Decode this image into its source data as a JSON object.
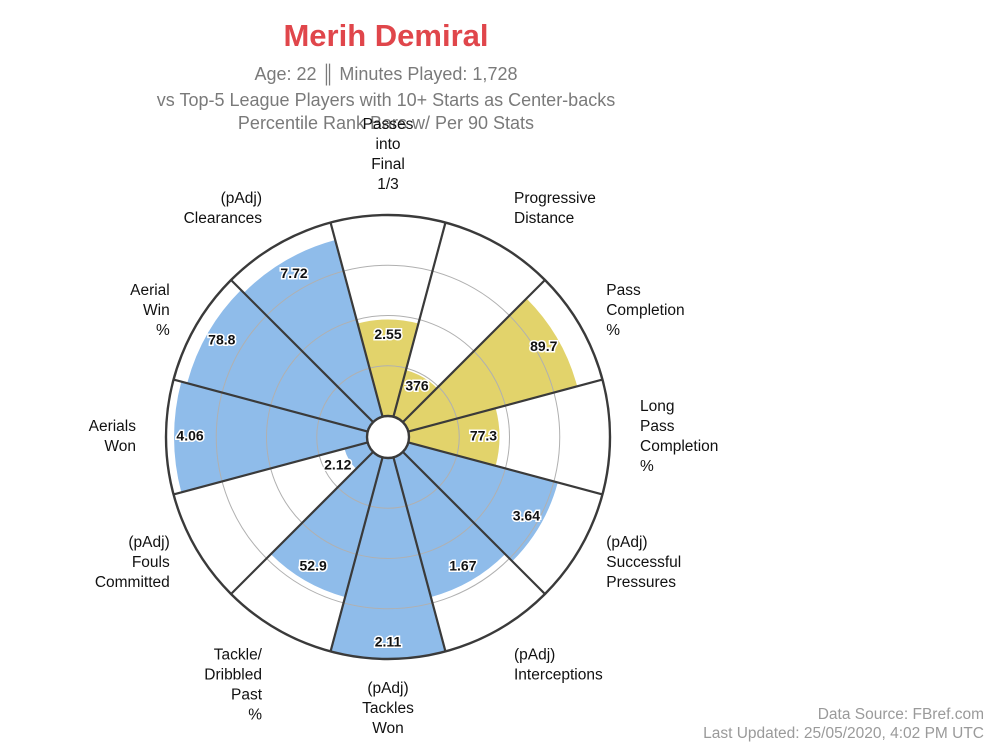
{
  "chart_data": {
    "type": "polar-bar",
    "title": "Merih Demiral",
    "subtitle_age_label": "Age: 22",
    "subtitle_separator": "║",
    "subtitle_minutes_label": "Minutes Played: 1,728",
    "subtitle_line2": "vs Top-5 League Players with 10+ Starts as Center-backs",
    "subtitle_line3": "Percentile Rank Bars w/ Per 90 Stats",
    "percentile_max": 100,
    "colors": {
      "attack": "#e2d36b",
      "defense": "#8fbcea",
      "outline": "#3a3a3a",
      "ring": "#b0b0b0"
    },
    "stats": [
      {
        "label": [
          "Passes",
          "into",
          "Final",
          "1/3"
        ],
        "value": "2.55",
        "percentile": 48,
        "group": "attack"
      },
      {
        "label": [
          "Progressive",
          "Distance"
        ],
        "value": "376",
        "percentile": 24,
        "group": "attack"
      },
      {
        "label": [
          "Pass",
          "Completion",
          "%"
        ],
        "value": "89.7",
        "percentile": 87,
        "group": "attack"
      },
      {
        "label": [
          "Long",
          "Pass",
          "Completion",
          "%"
        ],
        "value": "77.3",
        "percentile": 45,
        "group": "attack"
      },
      {
        "label": [
          "(pAdj)",
          "Successful",
          "Pressures"
        ],
        "value": "3.64",
        "percentile": 77,
        "group": "defense"
      },
      {
        "label": [
          "(pAdj)",
          "Interceptions"
        ],
        "value": "1.67",
        "percentile": 72,
        "group": "defense"
      },
      {
        "label": [
          "(pAdj)",
          "Tackles",
          "Won"
        ],
        "value": "2.11",
        "percentile": 100,
        "group": "defense"
      },
      {
        "label": [
          "Tackle/",
          "Dribbled",
          "Past",
          "%"
        ],
        "value": "52.9",
        "percentile": 72,
        "group": "defense"
      },
      {
        "label": [
          "(pAdj)",
          "Fouls",
          "Committed"
        ],
        "value": "2.12",
        "percentile": 12,
        "group": "defense"
      },
      {
        "label": [
          "Aerials",
          "Won"
        ],
        "value": "4.06",
        "percentile": 96,
        "group": "defense"
      },
      {
        "label": [
          "Aerial",
          "Win",
          "%"
        ],
        "value": "78.8",
        "percentile": 93,
        "group": "defense"
      },
      {
        "label": [
          "(pAdj)",
          "Clearances"
        ],
        "value": "7.72",
        "percentile": 91,
        "group": "defense"
      }
    ]
  },
  "footer": {
    "source": "Data Source: FBref.com",
    "updated": "Last Updated: 25/05/2020, 4:02 PM UTC"
  }
}
